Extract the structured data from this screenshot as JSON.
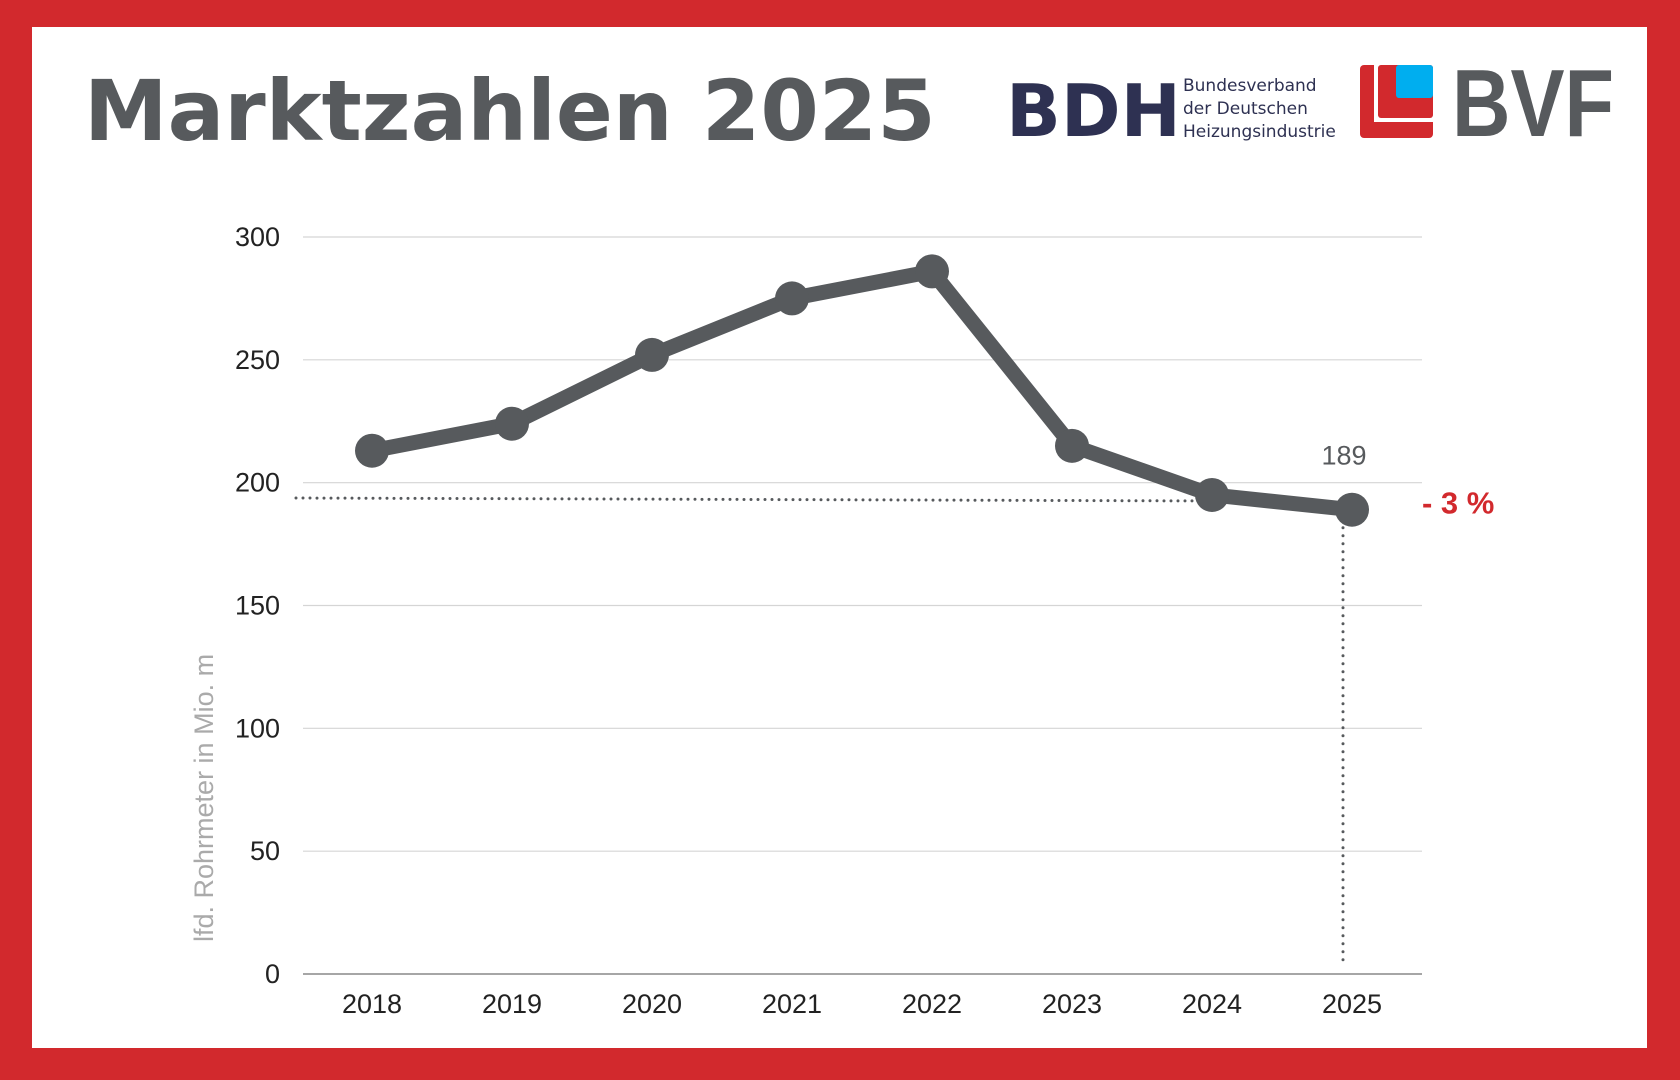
{
  "header": {
    "title": "Marktzahlen 2025",
    "logos": {
      "bdh": {
        "text": "BDH",
        "subtitle_lines": [
          "Bundesverband",
          "der Deutschen",
          "Heizungsindustrie"
        ],
        "color": "#2e3152"
      },
      "bvf": {
        "text": "BVF",
        "color": "#575a5d",
        "red": "#d2292d",
        "blue": "#00aeef"
      }
    }
  },
  "colors": {
    "border": "#d2292d",
    "line": "#575a5d",
    "grid": "#d5d5d5",
    "change": "#d2292d",
    "ylabel": "#aaaaaa"
  },
  "chart_data": {
    "type": "line",
    "title": "",
    "xlabel": "",
    "ylabel": "lfd. Rohrmeter in Mio. m",
    "categories": [
      "2018",
      "2019",
      "2020",
      "2021",
      "2022",
      "2023",
      "2024",
      "2025"
    ],
    "values": [
      213,
      224,
      252,
      275,
      286,
      215,
      195,
      189
    ],
    "ylim": [
      0,
      300
    ],
    "yticks": [
      "0",
      "50",
      "100",
      "150",
      "200",
      "250",
      "300"
    ],
    "grid": true,
    "annotations": {
      "last_value_label": "189",
      "change_label": "- 3 %"
    }
  }
}
